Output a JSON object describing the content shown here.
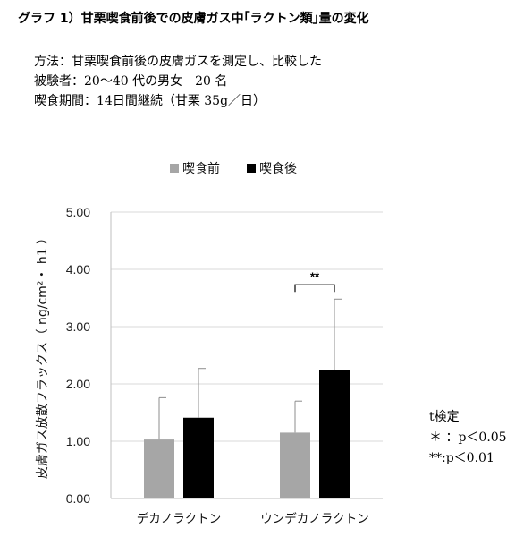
{
  "header": {
    "title": "グラフ 1）甘栗喫食前後での皮膚ガス中｢ラクトン類｣量の変化"
  },
  "method": {
    "line1": "方法：甘栗喫食前後の皮膚ガスを測定し、比較した",
    "line2": "被験者：20～40 代の男女　20 名",
    "line3": "喫食期間：14日間継続（甘栗 35g／日）"
  },
  "notes": {
    "title": "t検定",
    "line1": "＊ ：p＜0.05",
    "line2": "**:p＜0.01"
  },
  "chart_data": {
    "type": "bar",
    "title": "",
    "ylabel": "皮膚ガス放散フラックス（ ng/cm²・ h1 ）",
    "xlabel": "",
    "ylim": [
      0,
      5
    ],
    "yticks": [
      "0.00",
      "1.00",
      "2.00",
      "3.00",
      "4.00",
      "5.00"
    ],
    "grid": true,
    "legend_position": "top",
    "categories": [
      "デカノラクトン",
      "ウンデカノラクトン"
    ],
    "series": [
      {
        "name": "喫食前",
        "color": "#a6a6a6",
        "values": [
          1.03,
          1.15
        ],
        "errors": [
          0.73,
          0.55
        ]
      },
      {
        "name": "喫食後",
        "color": "#000000",
        "values": [
          1.41,
          2.25
        ],
        "errors": [
          0.86,
          1.23
        ]
      }
    ],
    "annotations": [
      {
        "category_index": 1,
        "text": "**"
      }
    ]
  }
}
